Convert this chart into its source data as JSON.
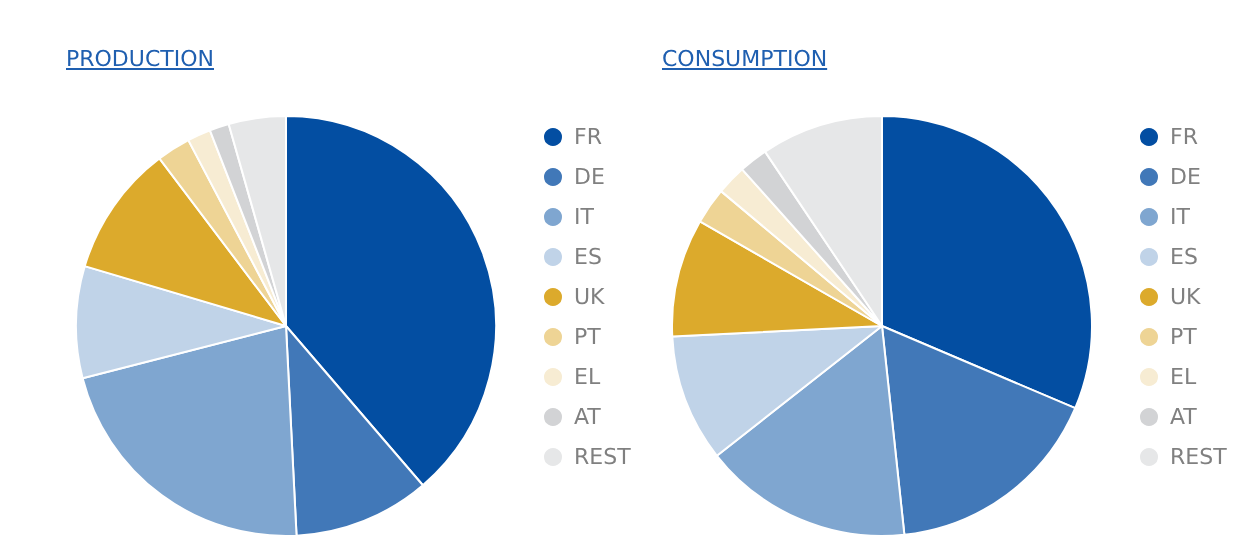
{
  "chart_data": [
    {
      "type": "pie",
      "title": "PRODUCTION",
      "categories": [
        "FR",
        "DE",
        "IT",
        "ES",
        "UK",
        "PT",
        "EL",
        "AT",
        "REST"
      ],
      "values": [
        38.7,
        10.5,
        21.8,
        8.6,
        10.1,
        2.6,
        1.8,
        1.5,
        4.4
      ],
      "colors": [
        "#034ea2",
        "#4178b8",
        "#7fa6d0",
        "#c0d3e8",
        "#dcaa2c",
        "#eed495",
        "#f7ecd3",
        "#d2d3d5",
        "#e6e7e8"
      ],
      "legend": "right"
    },
    {
      "type": "pie",
      "title": "CONSUMPTION",
      "categories": [
        "FR",
        "DE",
        "IT",
        "ES",
        "UK",
        "PT",
        "EL",
        "AT",
        "REST"
      ],
      "values": [
        31.4,
        16.9,
        16.1,
        9.8,
        9.1,
        2.8,
        2.3,
        2.2,
        9.4
      ],
      "colors": [
        "#034ea2",
        "#4178b8",
        "#7fa6d0",
        "#c0d3e8",
        "#dcaa2c",
        "#eed495",
        "#f7ecd3",
        "#d2d3d5",
        "#e6e7e8"
      ],
      "legend": "right"
    }
  ]
}
